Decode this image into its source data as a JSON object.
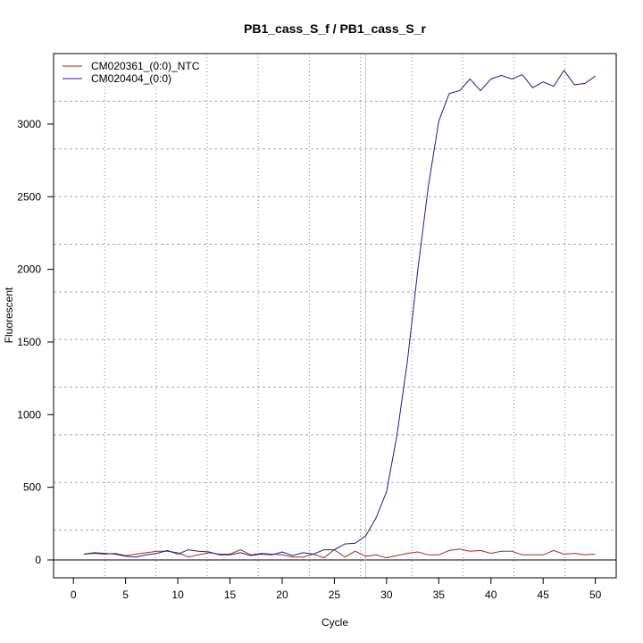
{
  "chart_data": {
    "type": "line",
    "title": "PB1_cass_S_f / PB1_cass_S_r",
    "xlabel": "Cycle",
    "ylabel": "Fluorescent",
    "xlim": [
      -1.9,
      52
    ],
    "ylim": [
      -123,
      3485
    ],
    "xticks": [
      0,
      5,
      10,
      15,
      20,
      25,
      30,
      35,
      40,
      45,
      50
    ],
    "yticks": [
      0,
      500,
      1000,
      1500,
      2000,
      2500,
      3000
    ],
    "grid": true,
    "legend_position": "top-left",
    "reference_line_y": 0,
    "threshold_cycle_line_x": 28,
    "x": [
      1,
      2,
      3,
      4,
      5,
      6,
      7,
      8,
      9,
      10,
      11,
      12,
      13,
      14,
      15,
      16,
      17,
      18,
      19,
      20,
      21,
      22,
      23,
      24,
      25,
      26,
      27,
      28,
      29,
      30,
      31,
      32,
      33,
      34,
      35,
      36,
      37,
      38,
      39,
      40,
      41,
      42,
      43,
      44,
      45,
      46,
      47,
      48,
      49,
      50
    ],
    "series": [
      {
        "name": "CM020361_(0:0)_NTC",
        "color": "#b22222",
        "values": [
          40,
          45,
          40,
          45,
          30,
          40,
          50,
          60,
          60,
          50,
          20,
          35,
          50,
          40,
          40,
          70,
          35,
          45,
          40,
          35,
          20,
          20,
          40,
          15,
          70,
          20,
          60,
          25,
          35,
          15,
          30,
          45,
          55,
          35,
          35,
          65,
          75,
          60,
          65,
          45,
          60,
          60,
          35,
          35,
          35,
          65,
          40,
          45,
          35,
          40
        ]
      },
      {
        "name": "CM020404_(0:0)",
        "color": "#1a1aa0",
        "values": [
          40,
          50,
          45,
          40,
          25,
          20,
          35,
          45,
          65,
          40,
          70,
          60,
          55,
          35,
          35,
          50,
          30,
          40,
          35,
          55,
          30,
          50,
          40,
          70,
          70,
          110,
          115,
          165,
          290,
          470,
          860,
          1370,
          2000,
          2570,
          3020,
          3210,
          3230,
          3310,
          3230,
          3310,
          3335,
          3310,
          3340,
          3250,
          3290,
          3260,
          3370,
          3270,
          3280,
          3330
        ]
      }
    ]
  }
}
